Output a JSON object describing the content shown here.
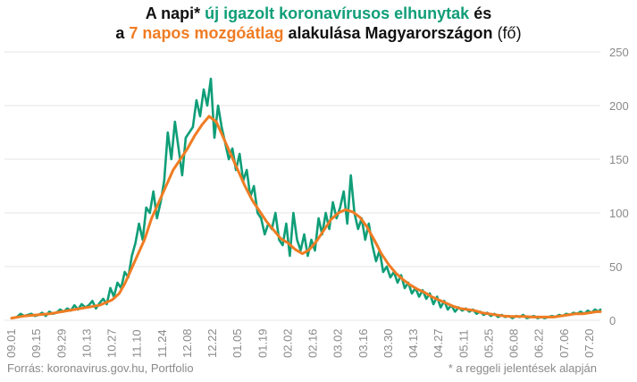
{
  "title_line1": {
    "part1": "A napi* ",
    "part2": "új igazolt koronavírusos elhunytak",
    "part3": " és"
  },
  "title_line2": {
    "part1": "a ",
    "part2": "7 napos mozgóátlag",
    "part3": " alakulása Magyarországon",
    "part4": " (fő)"
  },
  "footnote_source": "Forrás: koronavirus.gov.hu, Portfolio",
  "footnote_note": "* a reggeli jelentések alapján",
  "colors": {
    "daily": "#0f9e78",
    "average": "#f07c23",
    "grid": "#e6e6e6",
    "tick": "#8a8a8a"
  },
  "chart_data": {
    "type": "line",
    "title": "A napi* új igazolt koronavírusos elhunytak és a 7 napos mozgóátlag alakulása Magyarországon (fő)",
    "x_tick_labels": [
      "09.01",
      "09.15",
      "09.29",
      "10.13",
      "10.27",
      "11.10",
      "11.24",
      "12.08",
      "12.22",
      "01.05",
      "01.19",
      "02.02",
      "02.16",
      "03.02",
      "03.16",
      "03.30",
      "04.13",
      "04.27",
      "05.11",
      "05.25",
      "06.08",
      "06.22",
      "07.06",
      "07.20"
    ],
    "y_ticks": [
      0,
      50,
      100,
      150,
      200,
      250
    ],
    "ylim": [
      0,
      250
    ],
    "y_axis_position": "right",
    "grid": "horizontal",
    "x_unit_note": "x = day index from 09.01 (0) to 07.26 (328), ticks every 14 days",
    "series": [
      {
        "name": "új igazolt koronavírusos elhunytak",
        "color": "#0f9e78",
        "points": [
          [
            0,
            2
          ],
          [
            3,
            3
          ],
          [
            5,
            6
          ],
          [
            7,
            4
          ],
          [
            9,
            5
          ],
          [
            11,
            6
          ],
          [
            13,
            4
          ],
          [
            15,
            5
          ],
          [
            17,
            7
          ],
          [
            19,
            4
          ],
          [
            21,
            8
          ],
          [
            23,
            6
          ],
          [
            25,
            7
          ],
          [
            27,
            10
          ],
          [
            29,
            8
          ],
          [
            31,
            11
          ],
          [
            33,
            9
          ],
          [
            35,
            14
          ],
          [
            37,
            10
          ],
          [
            39,
            15
          ],
          [
            41,
            12
          ],
          [
            43,
            14
          ],
          [
            45,
            18
          ],
          [
            47,
            11
          ],
          [
            49,
            16
          ],
          [
            51,
            20
          ],
          [
            53,
            15
          ],
          [
            55,
            30
          ],
          [
            57,
            22
          ],
          [
            59,
            35
          ],
          [
            61,
            30
          ],
          [
            63,
            45
          ],
          [
            65,
            40
          ],
          [
            67,
            60
          ],
          [
            69,
            72
          ],
          [
            71,
            90
          ],
          [
            73,
            75
          ],
          [
            75,
            105
          ],
          [
            77,
            100
          ],
          [
            79,
            120
          ],
          [
            81,
            95
          ],
          [
            83,
            110
          ],
          [
            85,
            130
          ],
          [
            87,
            175
          ],
          [
            89,
            150
          ],
          [
            91,
            185
          ],
          [
            93,
            160
          ],
          [
            95,
            135
          ],
          [
            97,
            170
          ],
          [
            99,
            175
          ],
          [
            101,
            180
          ],
          [
            103,
            205
          ],
          [
            105,
            190
          ],
          [
            107,
            215
          ],
          [
            109,
            200
          ],
          [
            111,
            225
          ],
          [
            113,
            170
          ],
          [
            115,
            200
          ],
          [
            117,
            180
          ],
          [
            119,
            165
          ],
          [
            121,
            150
          ],
          [
            123,
            160
          ],
          [
            125,
            140
          ],
          [
            127,
            155
          ],
          [
            129,
            130
          ],
          [
            131,
            140
          ],
          [
            133,
            115
          ],
          [
            135,
            125
          ],
          [
            137,
            100
          ],
          [
            139,
            95
          ],
          [
            141,
            80
          ],
          [
            143,
            90
          ],
          [
            145,
            85
          ],
          [
            147,
            100
          ],
          [
            149,
            75
          ],
          [
            151,
            70
          ],
          [
            153,
            90
          ],
          [
            155,
            60
          ],
          [
            157,
            100
          ],
          [
            159,
            75
          ],
          [
            161,
            65
          ],
          [
            163,
            80
          ],
          [
            165,
            60
          ],
          [
            167,
            75
          ],
          [
            169,
            65
          ],
          [
            171,
            95
          ],
          [
            173,
            80
          ],
          [
            175,
            100
          ],
          [
            177,
            85
          ],
          [
            179,
            110
          ],
          [
            181,
            95
          ],
          [
            183,
            105
          ],
          [
            185,
            120
          ],
          [
            187,
            90
          ],
          [
            189,
            135
          ],
          [
            191,
            100
          ],
          [
            193,
            85
          ],
          [
            195,
            95
          ],
          [
            197,
            75
          ],
          [
            199,
            90
          ],
          [
            201,
            70
          ],
          [
            203,
            55
          ],
          [
            205,
            65
          ],
          [
            207,
            45
          ],
          [
            209,
            50
          ],
          [
            211,
            40
          ],
          [
            213,
            45
          ],
          [
            215,
            35
          ],
          [
            217,
            42
          ],
          [
            219,
            30
          ],
          [
            221,
            35
          ],
          [
            223,
            25
          ],
          [
            225,
            30
          ],
          [
            227,
            22
          ],
          [
            229,
            28
          ],
          [
            231,
            20
          ],
          [
            233,
            25
          ],
          [
            235,
            15
          ],
          [
            237,
            22
          ],
          [
            239,
            12
          ],
          [
            241,
            18
          ],
          [
            243,
            10
          ],
          [
            245,
            14
          ],
          [
            247,
            8
          ],
          [
            249,
            12
          ],
          [
            251,
            9
          ],
          [
            253,
            11
          ],
          [
            255,
            8
          ],
          [
            257,
            10
          ],
          [
            259,
            6
          ],
          [
            261,
            8
          ],
          [
            263,
            5
          ],
          [
            265,
            7
          ],
          [
            267,
            4
          ],
          [
            269,
            6
          ],
          [
            271,
            3
          ],
          [
            273,
            5
          ],
          [
            275,
            3
          ],
          [
            277,
            4
          ],
          [
            279,
            2
          ],
          [
            281,
            4
          ],
          [
            283,
            3
          ],
          [
            285,
            5
          ],
          [
            287,
            2
          ],
          [
            289,
            3
          ],
          [
            291,
            4
          ],
          [
            293,
            2
          ],
          [
            295,
            3
          ],
          [
            297,
            2
          ],
          [
            299,
            3
          ],
          [
            301,
            4
          ],
          [
            303,
            3
          ],
          [
            305,
            5
          ],
          [
            307,
            4
          ],
          [
            309,
            6
          ],
          [
            311,
            5
          ],
          [
            313,
            7
          ],
          [
            315,
            6
          ],
          [
            317,
            8
          ],
          [
            319,
            6
          ],
          [
            321,
            9
          ],
          [
            323,
            7
          ],
          [
            325,
            10
          ],
          [
            327,
            8
          ],
          [
            328,
            10
          ]
        ]
      },
      {
        "name": "7 napos mozgóátlag",
        "color": "#f07c23",
        "points": [
          [
            0,
            2
          ],
          [
            7,
            4
          ],
          [
            14,
            5
          ],
          [
            21,
            6
          ],
          [
            28,
            8
          ],
          [
            35,
            10
          ],
          [
            42,
            12
          ],
          [
            49,
            14
          ],
          [
            56,
            19
          ],
          [
            60,
            25
          ],
          [
            63,
            34
          ],
          [
            66,
            45
          ],
          [
            70,
            60
          ],
          [
            74,
            75
          ],
          [
            78,
            95
          ],
          [
            82,
            110
          ],
          [
            86,
            125
          ],
          [
            90,
            140
          ],
          [
            94,
            150
          ],
          [
            98,
            160
          ],
          [
            102,
            172
          ],
          [
            106,
            182
          ],
          [
            110,
            190
          ],
          [
            114,
            185
          ],
          [
            118,
            170
          ],
          [
            122,
            155
          ],
          [
            126,
            140
          ],
          [
            130,
            125
          ],
          [
            134,
            112
          ],
          [
            138,
            102
          ],
          [
            142,
            92
          ],
          [
            146,
            84
          ],
          [
            150,
            76
          ],
          [
            154,
            72
          ],
          [
            158,
            66
          ],
          [
            162,
            62
          ],
          [
            166,
            66
          ],
          [
            170,
            74
          ],
          [
            174,
            84
          ],
          [
            178,
            94
          ],
          [
            182,
            100
          ],
          [
            186,
            103
          ],
          [
            190,
            101
          ],
          [
            194,
            96
          ],
          [
            198,
            87
          ],
          [
            202,
            75
          ],
          [
            206,
            62
          ],
          [
            210,
            52
          ],
          [
            214,
            44
          ],
          [
            218,
            38
          ],
          [
            222,
            33
          ],
          [
            226,
            29
          ],
          [
            230,
            26
          ],
          [
            234,
            22
          ],
          [
            238,
            19
          ],
          [
            242,
            16
          ],
          [
            246,
            13
          ],
          [
            250,
            11
          ],
          [
            254,
            10
          ],
          [
            258,
            9
          ],
          [
            262,
            7
          ],
          [
            266,
            6
          ],
          [
            270,
            5
          ],
          [
            274,
            4
          ],
          [
            278,
            3.5
          ],
          [
            282,
            3.5
          ],
          [
            286,
            3.5
          ],
          [
            290,
            3
          ],
          [
            294,
            3
          ],
          [
            298,
            3
          ],
          [
            302,
            3
          ],
          [
            306,
            4
          ],
          [
            310,
            5
          ],
          [
            314,
            6
          ],
          [
            318,
            6
          ],
          [
            322,
            7
          ],
          [
            326,
            8
          ],
          [
            328,
            8
          ]
        ]
      }
    ]
  }
}
